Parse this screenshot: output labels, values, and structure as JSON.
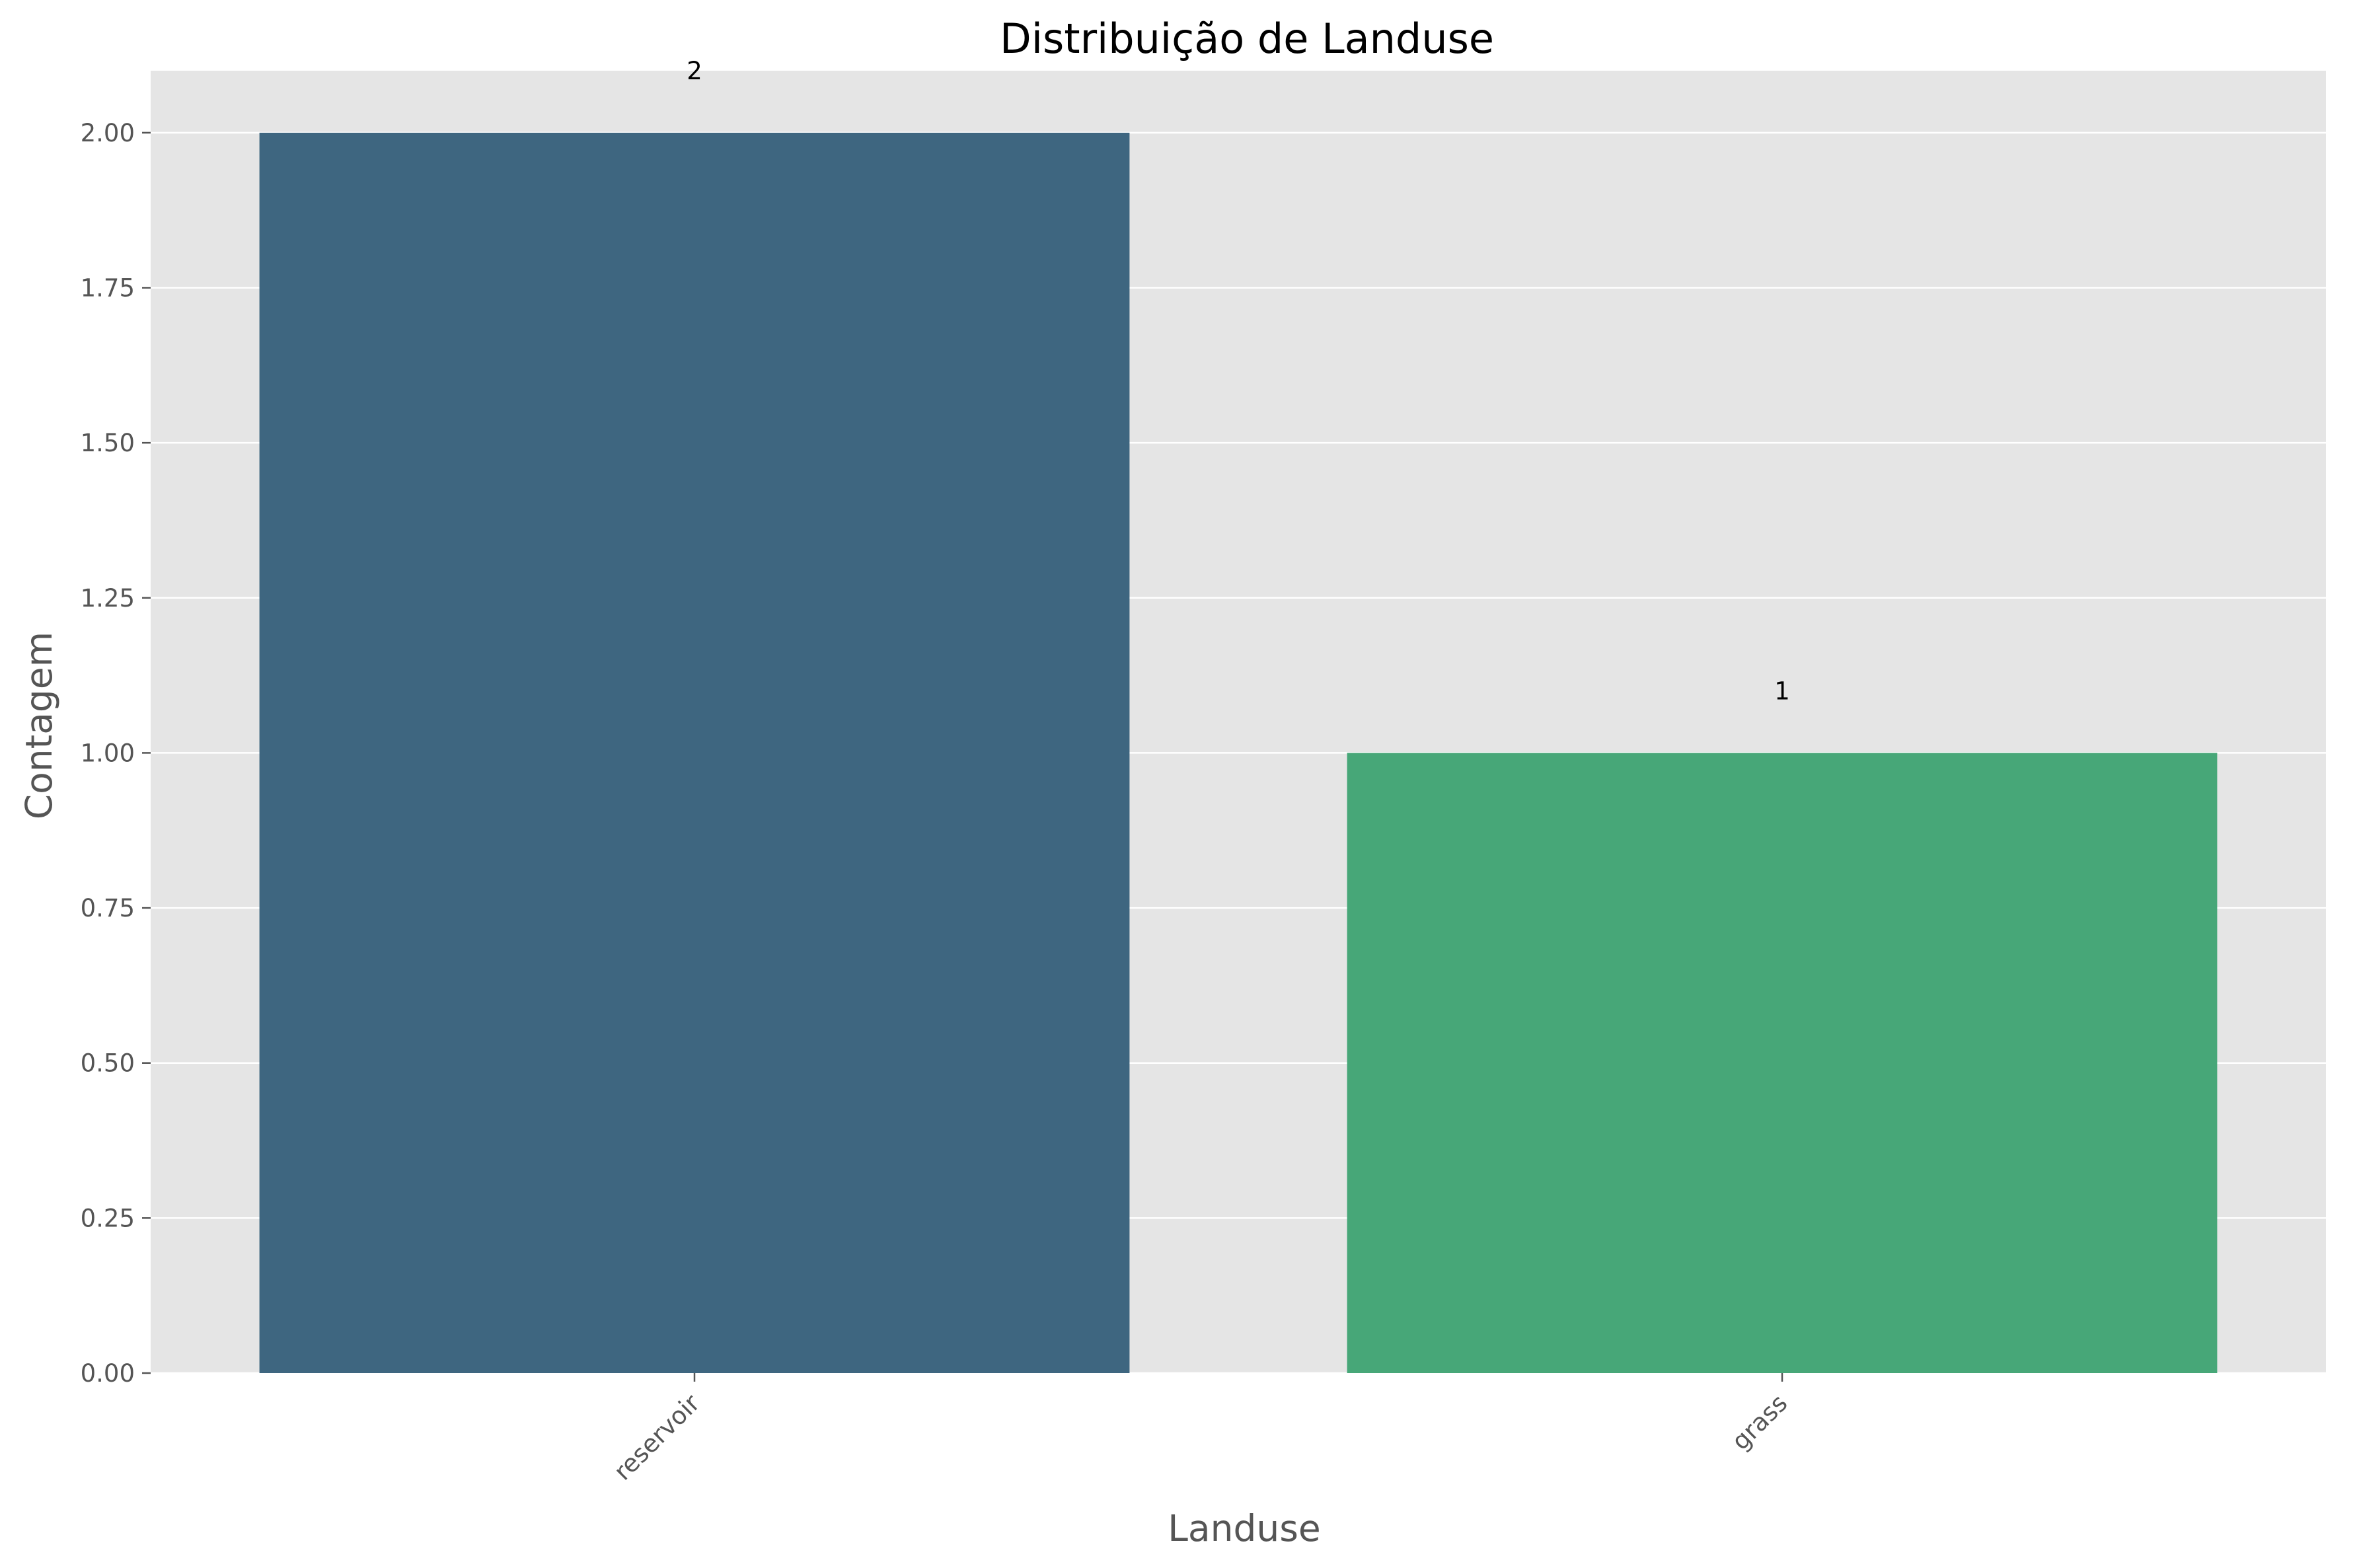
{
  "chart_data": {
    "type": "bar",
    "title": "Distribuição de Landuse",
    "xlabel": "Landuse",
    "ylabel": "Contagem",
    "categories": [
      "reservoir",
      "grass"
    ],
    "values": [
      2,
      1
    ],
    "data_labels": [
      "2",
      "1"
    ],
    "bar_colors": [
      "#3e6680",
      "#47a778"
    ],
    "ylim": [
      0,
      2.1
    ],
    "yticks": [
      0,
      0.25,
      0.5,
      0.75,
      1.0,
      1.25,
      1.5,
      1.75,
      2.0
    ],
    "ytick_labels": [
      "0.00",
      "0.25",
      "0.50",
      "0.75",
      "1.00",
      "1.25",
      "1.50",
      "1.75",
      "2.00"
    ],
    "grid": true,
    "plot_background": "#e5e5e5",
    "grid_color": "#ffffff"
  }
}
